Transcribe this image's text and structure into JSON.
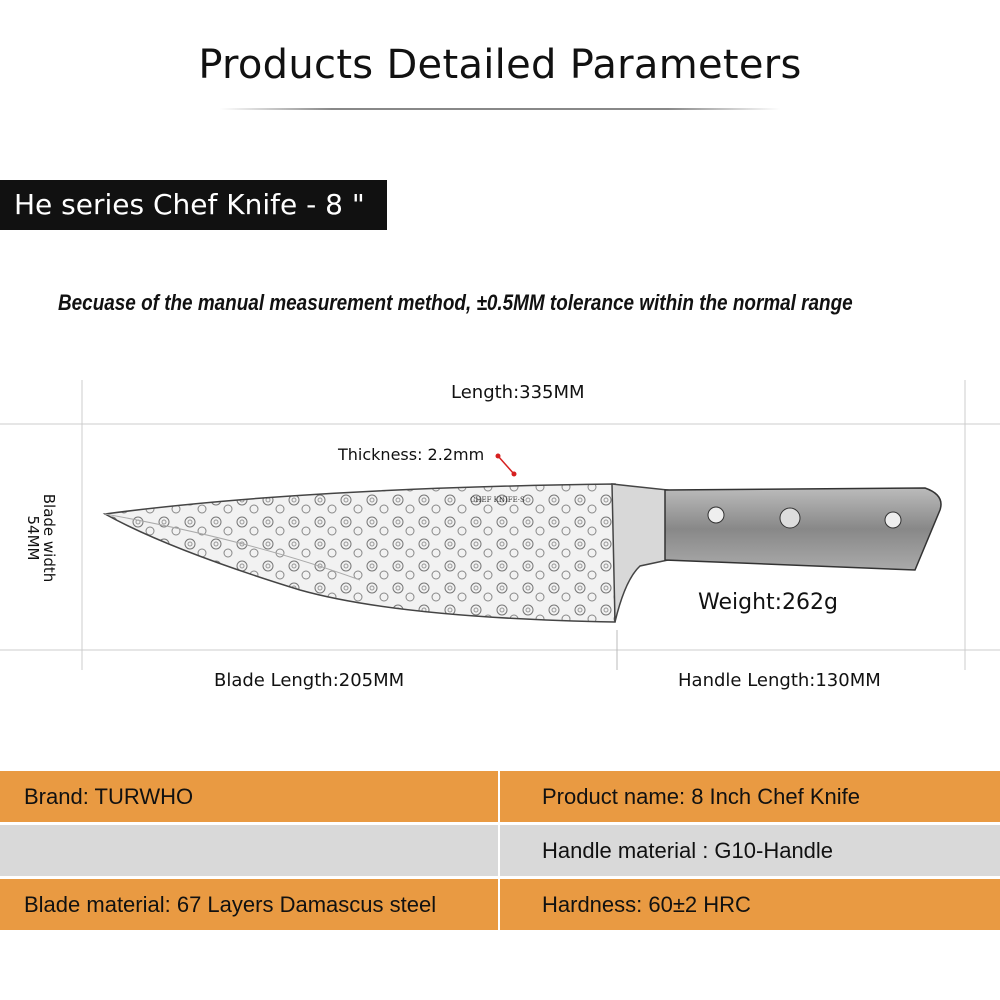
{
  "header": {
    "title": "Products Detailed Parameters"
  },
  "series_banner": "He series Chef Knife - 8 \"",
  "note": "Becuase of the manual measurement method, ±0.5MM tolerance within the normal range",
  "dimensions": {
    "length": "Length:335MM",
    "thickness": "Thickness: 2.2mm",
    "blade_width": "Blade width 54MM",
    "weight": "Weight:262g",
    "blade_length": "Blade Length:205MM",
    "handle_length": "Handle Length:130MM"
  },
  "knife_logo_text": "CHEF KNIFE·S",
  "colors": {
    "orange": "#E99A42",
    "gray": "#D9D9D9",
    "banner": "#111111",
    "thickness_marker": "#D62020"
  },
  "specs": [
    {
      "left": "Brand: TURWHO",
      "right": "Product name: 8 Inch Chef Knife",
      "color": "orange"
    },
    {
      "left": "",
      "right": "Handle material : G10-Handle",
      "color": "gray"
    },
    {
      "left": "Blade material: 67 Layers Damascus steel",
      "right": "Hardness: 60±2 HRC",
      "color": "orange"
    }
  ]
}
